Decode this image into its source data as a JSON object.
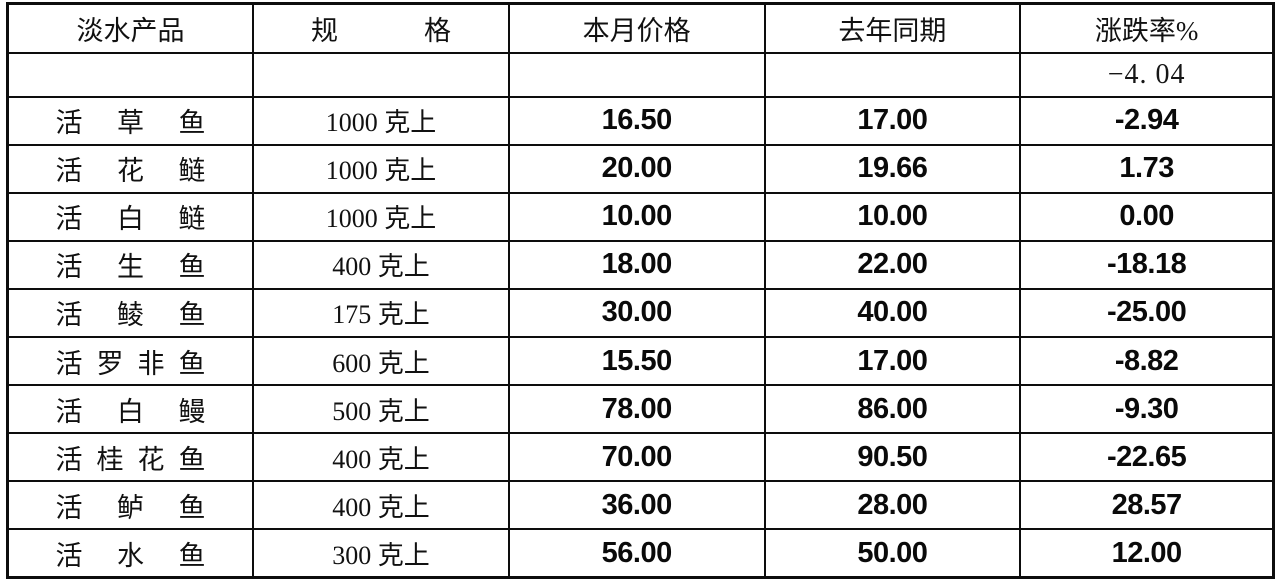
{
  "table": {
    "headers": {
      "product": "淡水产品",
      "spec": "规格",
      "current_price": "本月价格",
      "last_year": "去年同期",
      "change_rate": "涨跌率%"
    },
    "summary_row": {
      "product": "",
      "spec": "",
      "current_price": "",
      "last_year": "",
      "change_rate": "−4. 04"
    },
    "rows": [
      {
        "product": "活草鱼",
        "spec": "1000 克上",
        "current_price": "16.50",
        "last_year": "17.00",
        "change_rate": "-2.94"
      },
      {
        "product": "活花鲢",
        "spec": "1000 克上",
        "current_price": "20.00",
        "last_year": "19.66",
        "change_rate": "1.73"
      },
      {
        "product": "活白鲢",
        "spec": "1000 克上",
        "current_price": "10.00",
        "last_year": "10.00",
        "change_rate": "0.00"
      },
      {
        "product": "活生鱼",
        "spec": "400 克上",
        "current_price": "18.00",
        "last_year": "22.00",
        "change_rate": "-18.18"
      },
      {
        "product": "活鲮鱼",
        "spec": "175 克上",
        "current_price": "30.00",
        "last_year": "40.00",
        "change_rate": "-25.00"
      },
      {
        "product": "活罗非鱼",
        "spec": "600 克上",
        "current_price": "15.50",
        "last_year": "17.00",
        "change_rate": "-8.82"
      },
      {
        "product": "活白鳗",
        "spec": "500 克上",
        "current_price": "78.00",
        "last_year": "86.00",
        "change_rate": "-9.30"
      },
      {
        "product": "活桂花鱼",
        "spec": "400 克上",
        "current_price": "70.00",
        "last_year": "90.50",
        "change_rate": "-22.65"
      },
      {
        "product": "活鲈鱼",
        "spec": "400 克上",
        "current_price": "36.00",
        "last_year": "28.00",
        "change_rate": "28.57"
      },
      {
        "product": "活水鱼",
        "spec": "300 克上",
        "current_price": "56.00",
        "last_year": "50.00",
        "change_rate": "12.00"
      }
    ]
  }
}
